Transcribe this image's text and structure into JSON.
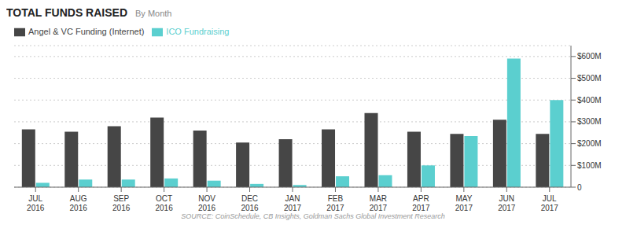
{
  "chart_data": {
    "type": "bar",
    "title": "TOTAL FUNDS RAISED",
    "subtitle": "By Month",
    "annotations": [
      "SOURCE: CoinSchedule, CB Insights, Goldman Sachs Global Investment Research"
    ],
    "categories": [
      "JUL\n2016",
      "AUG\n2016",
      "SEP\n2016",
      "OCT\n2016",
      "NOV\n2016",
      "DEC\n2016",
      "JAN\n2017",
      "FEB\n2017",
      "MAR\n2017",
      "APR\n2017",
      "MAY\n2017",
      "JUN\n2017",
      "JUL\n2017"
    ],
    "series": [
      {
        "name": "Angel & VC Funding (Internet)",
        "color": "#464646",
        "values": [
          265,
          255,
          280,
          320,
          260,
          205,
          220,
          265,
          340,
          255,
          245,
          310,
          245
        ]
      },
      {
        "name": "ICO Fundraising",
        "color": "#5BCFCF",
        "values": [
          20,
          35,
          35,
          40,
          30,
          15,
          10,
          50,
          55,
          100,
          235,
          590,
          400
        ]
      }
    ],
    "ylim": [
      0,
      650
    ],
    "yticks": [
      0,
      {
        "value": 100,
        "label": "$100M"
      },
      {
        "value": 200,
        "label": "$200M"
      },
      {
        "value": 300,
        "label": "$300M"
      },
      {
        "value": 400,
        "label": "$400M"
      },
      {
        "value": 500,
        "label": "$500M"
      },
      {
        "value": 600,
        "label": "$600M"
      }
    ],
    "grid": true,
    "legend": "top"
  }
}
